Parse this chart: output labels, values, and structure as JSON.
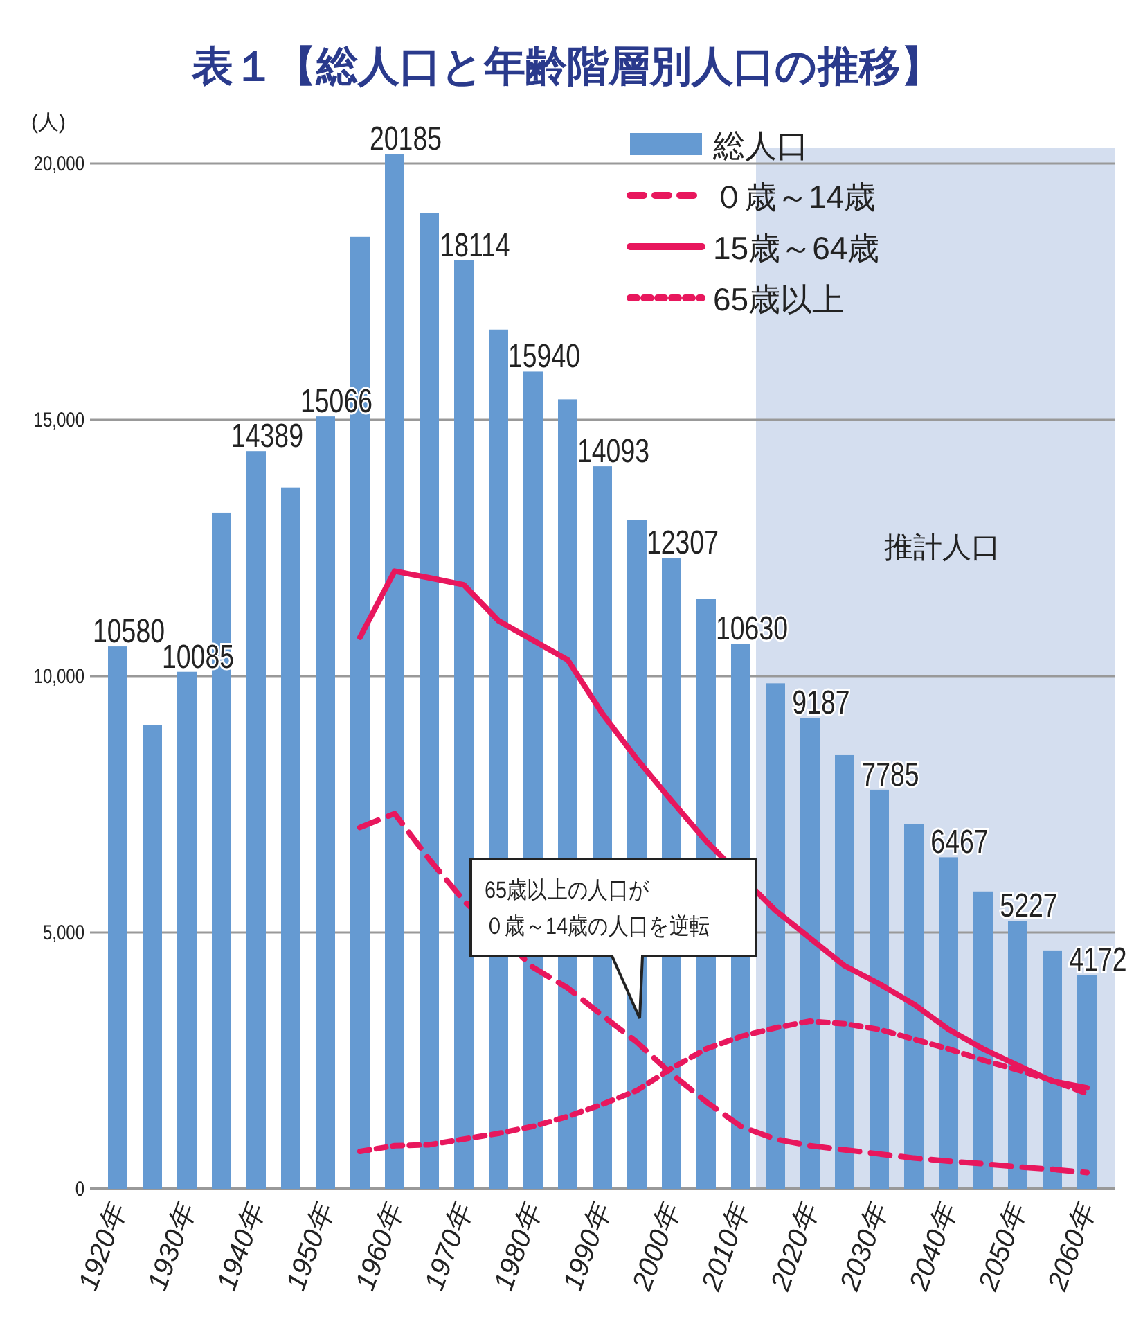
{
  "chart_data": {
    "type": "bar",
    "title": "表１【総人口と年齢階層別人口の推移】",
    "ylabel": "(人)",
    "x": [
      1920,
      1925,
      1930,
      1935,
      1940,
      1945,
      1950,
      1955,
      1960,
      1965,
      1970,
      1975,
      1980,
      1985,
      1990,
      1995,
      2000,
      2005,
      2010,
      2015,
      2020,
      2025,
      2030,
      2035,
      2040,
      2045,
      2050,
      2055,
      2060
    ],
    "xlim": [
      1916,
      2064
    ],
    "xticks": [
      {
        "value": 1920,
        "label": "1920年"
      },
      {
        "value": 1930,
        "label": "1930年"
      },
      {
        "value": 1940,
        "label": "1940年"
      },
      {
        "value": 1950,
        "label": "1950年"
      },
      {
        "value": 1960,
        "label": "1960年"
      },
      {
        "value": 1970,
        "label": "1970年"
      },
      {
        "value": 1980,
        "label": "1980年"
      },
      {
        "value": 1990,
        "label": "1990年"
      },
      {
        "value": 2000,
        "label": "2000年"
      },
      {
        "value": 2010,
        "label": "2010年"
      },
      {
        "value": 2020,
        "label": "2020年"
      },
      {
        "value": 2030,
        "label": "2030年"
      },
      {
        "value": 2040,
        "label": "2040年"
      },
      {
        "value": 2050,
        "label": "2050年"
      },
      {
        "value": 2060,
        "label": "2060年"
      }
    ],
    "ylim": [
      0,
      20300
    ],
    "yticks": [
      0,
      {
        "value": 5000,
        "label": "5,000"
      },
      {
        "value": 10000,
        "label": "10,000"
      },
      {
        "value": 15000,
        "label": "15,000"
      },
      {
        "value": 20000,
        "label": "20,000"
      }
    ],
    "grid": "y",
    "legend": "top right",
    "series": [
      {
        "name": "総人口",
        "color": "#659ad2",
        "values": [
          10580,
          9050,
          10085,
          13190,
          14389,
          13680,
          15066,
          18570,
          20185,
          19030,
          18114,
          16760,
          15940,
          15400,
          14093,
          13050,
          12307,
          11510,
          10630,
          9860,
          9187,
          8460,
          7785,
          7110,
          6467,
          5800,
          5227,
          4650,
          4172
        ],
        "value_labels": [
          "10580",
          null,
          "10085",
          null,
          "14389",
          null,
          "15066",
          null,
          "20185",
          null,
          "18114",
          null,
          "15940",
          null,
          "14093",
          null,
          "12307",
          null,
          "10630",
          null,
          "9187",
          null,
          "7785",
          null,
          "6467",
          null,
          "5227",
          null,
          "4172"
        ]
      },
      {
        "name": "０歳～14歳",
        "type": "line",
        "line_style": "dashed",
        "color": "#e8175d",
        "values": [
          null,
          null,
          null,
          null,
          null,
          null,
          null,
          7050,
          7320,
          6430,
          5620,
          null,
          4320,
          3920,
          3380,
          2860,
          2240,
          1700,
          1220,
          970,
          840,
          760,
          680,
          600,
          540,
          490,
          430,
          380,
          320
        ]
      },
      {
        "name": "15歳～64歳",
        "type": "line",
        "line_style": "solid",
        "color": "#e8175d",
        "values": [
          null,
          null,
          null,
          null,
          null,
          null,
          null,
          10760,
          12050,
          11920,
          11780,
          11080,
          10700,
          10320,
          9270,
          8380,
          7570,
          6780,
          null,
          5430,
          4890,
          4350,
          4000,
          3600,
          3110,
          2730,
          2410,
          2100,
          1970
        ]
      },
      {
        "name": "65歳以上",
        "type": "line",
        "line_style": "dotted",
        "color": "#e8175d",
        "values": [
          null,
          null,
          null,
          null,
          null,
          null,
          null,
          730,
          840,
          860,
          970,
          1080,
          1220,
          1410,
          1650,
          1920,
          2350,
          2730,
          2970,
          3140,
          3270,
          3220,
          3110,
          2920,
          2730,
          2510,
          2320,
          2110,
          1860
        ]
      }
    ],
    "bands": [
      {
        "axis": "x",
        "from": 2012.2,
        "to": 2064,
        "label": "推計人口",
        "color": "#d4deef"
      }
    ],
    "annotations": [
      "65歳以上の人口が０歳～14歳の人口を逆転"
    ]
  }
}
